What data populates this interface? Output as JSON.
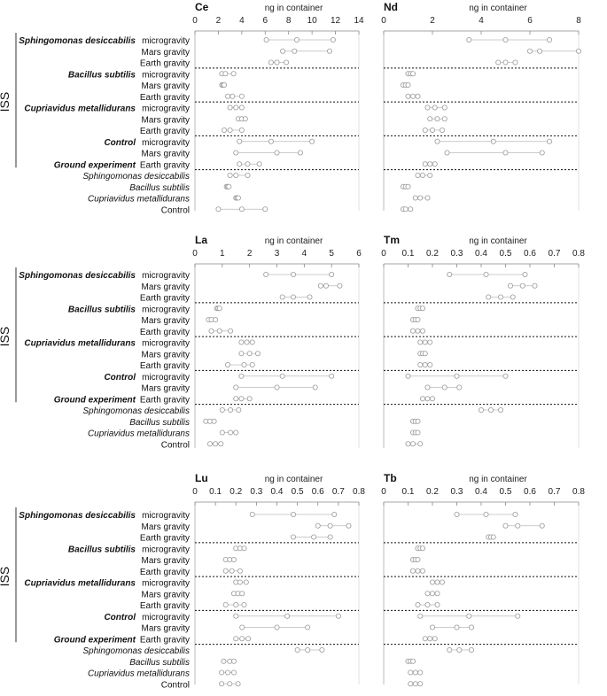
{
  "side_label": "ISS",
  "axis_label": "ng in container",
  "groups": [
    {
      "organism": "Sphingomonas desiccabilis",
      "conditions": [
        "microgravity",
        "Mars gravity",
        "Earth gravity"
      ]
    },
    {
      "organism": "Bacillus subtilis",
      "conditions": [
        "microgravity",
        "Mars gravity",
        "Earth gravity"
      ]
    },
    {
      "organism": "Cupriavidus metallidurans",
      "conditions": [
        "microgravity",
        "Mars gravity",
        "Earth gravity"
      ]
    },
    {
      "organism": "Control",
      "conditions": [
        "microgravity",
        "Mars gravity",
        "Earth gravity"
      ]
    }
  ],
  "ground_label": "Ground experiment",
  "ground_items": [
    "Sphingomonas desiccabilis",
    "Bacillus subtilis",
    "Cupriavidus metallidurans",
    "Control"
  ],
  "chart_data": [
    {
      "type": "scatter",
      "title": "Ce",
      "xlabel": "ng in container",
      "xlim": [
        0,
        14
      ],
      "ticks": [
        "0",
        "2",
        "4",
        "6",
        "8",
        "10",
        "12",
        "14"
      ],
      "rows": [
        [
          6.1,
          8.7,
          11.8
        ],
        [
          7.5,
          8.5,
          11.5
        ],
        [
          6.5,
          7.0,
          7.8
        ],
        [
          2.3,
          2.6,
          3.3
        ],
        [
          2.3,
          2.4,
          2.5
        ],
        [
          2.8,
          3.2,
          4.0
        ],
        [
          3.0,
          3.5,
          4.0
        ],
        [
          3.7,
          4.0,
          4.3
        ],
        [
          2.5,
          3.0,
          4.0
        ],
        [
          3.8,
          6.5,
          10.0
        ],
        [
          3.5,
          7.0,
          9.0
        ],
        [
          3.8,
          4.5,
          5.5
        ],
        [
          3.0,
          3.5,
          4.5
        ],
        [
          2.7,
          2.8,
          2.9
        ],
        [
          3.5,
          3.6,
          3.7
        ],
        [
          2.0,
          4.0,
          6.0
        ]
      ]
    },
    {
      "type": "scatter",
      "title": "Nd",
      "xlabel": "ng in container",
      "xlim": [
        0,
        8
      ],
      "ticks": [
        "0",
        "2",
        "4",
        "6",
        "8"
      ],
      "rows": [
        [
          3.5,
          5.0,
          6.8
        ],
        [
          6.0,
          6.4,
          8.0
        ],
        [
          4.7,
          5.0,
          5.4
        ],
        [
          1.0,
          1.1,
          1.2
        ],
        [
          0.8,
          0.9,
          1.0
        ],
        [
          1.0,
          1.2,
          1.4
        ],
        [
          1.8,
          2.1,
          2.5
        ],
        [
          1.9,
          2.2,
          2.5
        ],
        [
          1.7,
          2.0,
          2.4
        ],
        [
          2.2,
          4.5,
          6.8
        ],
        [
          2.6,
          5.0,
          6.5
        ],
        [
          1.7,
          1.9,
          2.1
        ],
        [
          1.4,
          1.6,
          1.9
        ],
        [
          0.8,
          0.9,
          1.0
        ],
        [
          1.3,
          1.5,
          1.8
        ],
        [
          0.8,
          0.9,
          1.1
        ]
      ]
    },
    {
      "type": "scatter",
      "title": "La",
      "xlabel": "ng in container",
      "xlim": [
        0,
        6
      ],
      "ticks": [
        "0",
        "1",
        "2",
        "3",
        "4",
        "5",
        "6"
      ],
      "rows": [
        [
          2.6,
          3.6,
          5.0
        ],
        [
          4.6,
          4.8,
          5.3
        ],
        [
          3.2,
          3.6,
          4.2
        ],
        [
          0.8,
          0.85,
          0.9
        ],
        [
          0.5,
          0.6,
          0.75
        ],
        [
          0.6,
          0.9,
          1.3
        ],
        [
          1.7,
          1.9,
          2.1
        ],
        [
          1.7,
          2.0,
          2.3
        ],
        [
          1.2,
          1.8,
          2.1
        ],
        [
          1.7,
          3.2,
          5.0
        ],
        [
          1.5,
          3.0,
          4.4
        ],
        [
          1.5,
          1.7,
          2.0
        ],
        [
          1.0,
          1.3,
          1.6
        ],
        [
          0.4,
          0.55,
          0.7
        ],
        [
          1.0,
          1.3,
          1.5
        ],
        [
          0.55,
          0.75,
          0.95
        ]
      ]
    },
    {
      "type": "scatter",
      "title": "Tm",
      "xlabel": "ng in container",
      "xlim": [
        0,
        0.8
      ],
      "ticks": [
        "0",
        "0.1",
        "0.2",
        "0.3",
        "0.4",
        "0.5",
        "0.6",
        "0.7",
        "0.8"
      ],
      "rows": [
        [
          0.27,
          0.42,
          0.58
        ],
        [
          0.52,
          0.57,
          0.62
        ],
        [
          0.43,
          0.48,
          0.53
        ],
        [
          0.14,
          0.15,
          0.16
        ],
        [
          0.12,
          0.13,
          0.14
        ],
        [
          0.12,
          0.14,
          0.16
        ],
        [
          0.15,
          0.17,
          0.19
        ],
        [
          0.15,
          0.16,
          0.17
        ],
        [
          0.15,
          0.17,
          0.19
        ],
        [
          0.1,
          0.3,
          0.5
        ],
        [
          0.18,
          0.25,
          0.31
        ],
        [
          0.16,
          0.18,
          0.2
        ],
        [
          0.4,
          0.44,
          0.48
        ],
        [
          0.12,
          0.13,
          0.14
        ],
        [
          0.12,
          0.13,
          0.14
        ],
        [
          0.1,
          0.12,
          0.15
        ]
      ]
    },
    {
      "type": "scatter",
      "title": "Lu",
      "xlabel": "ng in container",
      "xlim": [
        0,
        0.8
      ],
      "ticks": [
        "0",
        "0.1",
        "0.2",
        "0.3",
        "0.4",
        "0.5",
        "0.6",
        "0.7",
        "0.8"
      ],
      "rows": [
        [
          0.28,
          0.48,
          0.68
        ],
        [
          0.6,
          0.66,
          0.75
        ],
        [
          0.48,
          0.58,
          0.66
        ],
        [
          0.2,
          0.22,
          0.24
        ],
        [
          0.15,
          0.17,
          0.19
        ],
        [
          0.15,
          0.18,
          0.22
        ],
        [
          0.2,
          0.22,
          0.25
        ],
        [
          0.19,
          0.21,
          0.23
        ],
        [
          0.15,
          0.2,
          0.24
        ],
        [
          0.2,
          0.45,
          0.7
        ],
        [
          0.23,
          0.4,
          0.55
        ],
        [
          0.2,
          0.23,
          0.26
        ],
        [
          0.5,
          0.55,
          0.62
        ],
        [
          0.14,
          0.17,
          0.19
        ],
        [
          0.13,
          0.16,
          0.19
        ],
        [
          0.13,
          0.17,
          0.21
        ]
      ]
    },
    {
      "type": "scatter",
      "title": "Tb",
      "xlabel": "ng in container",
      "xlim": [
        0,
        0.8
      ],
      "ticks": [
        "0",
        "0.1",
        "0.2",
        "0.3",
        "0.4",
        "0.5",
        "0.6",
        "0.7",
        "0.8"
      ],
      "rows": [
        [
          0.3,
          0.42,
          0.54
        ],
        [
          0.5,
          0.55,
          0.65
        ],
        [
          0.43,
          0.44,
          0.45
        ],
        [
          0.14,
          0.15,
          0.16
        ],
        [
          0.12,
          0.13,
          0.14
        ],
        [
          0.12,
          0.14,
          0.16
        ],
        [
          0.2,
          0.22,
          0.24
        ],
        [
          0.18,
          0.2,
          0.22
        ],
        [
          0.14,
          0.18,
          0.22
        ],
        [
          0.15,
          0.35,
          0.55
        ],
        [
          0.2,
          0.3,
          0.36
        ],
        [
          0.17,
          0.19,
          0.21
        ],
        [
          0.27,
          0.31,
          0.36
        ],
        [
          0.1,
          0.11,
          0.12
        ],
        [
          0.11,
          0.13,
          0.15
        ],
        [
          0.11,
          0.13,
          0.15
        ]
      ]
    }
  ]
}
